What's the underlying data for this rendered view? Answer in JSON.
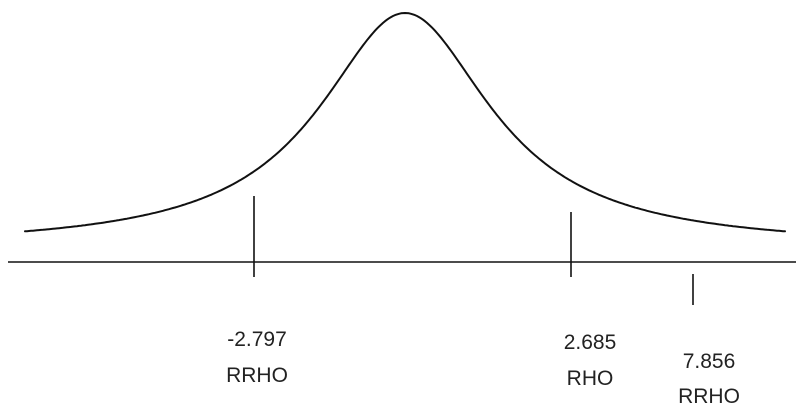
{
  "curve_shape": "bell",
  "markers": [
    {
      "value_label": "-2.797",
      "name_label": "RRHO"
    },
    {
      "value_label": "2.685",
      "name_label": "RHO"
    },
    {
      "value_label": "7.856",
      "name_label": "RRHO"
    }
  ]
}
